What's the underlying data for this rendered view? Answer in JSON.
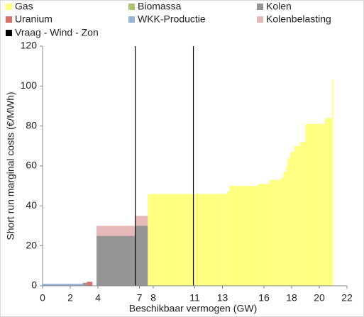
{
  "chart_data": {
    "type": "step-area",
    "x_label": "Beschikbaar vermogen (GW)",
    "y_label": "Short run marginal costs (€/MWh)",
    "xlim": [
      0,
      22
    ],
    "xticks": [
      0,
      2,
      4,
      7,
      8,
      11,
      13,
      16,
      18,
      20,
      22
    ],
    "ylim": [
      0,
      120
    ],
    "yticks": [
      0,
      20,
      40,
      60,
      80,
      100,
      120
    ],
    "grid": false,
    "series": [
      {
        "name": "Gas",
        "color": "#ffff80",
        "x0": [
          7.6,
          13.3,
          13.5,
          15.6,
          16.4,
          17.2,
          17.4,
          17.6,
          17.7,
          17.9,
          18.2,
          18.6,
          19.0,
          20.4,
          20.9
        ],
        "x1": [
          13.3,
          13.5,
          15.6,
          16.4,
          17.2,
          17.4,
          17.6,
          17.7,
          17.9,
          18.2,
          18.6,
          19.0,
          20.4,
          20.9,
          21.0
        ],
        "values": [
          46,
          47,
          50,
          51,
          53,
          54,
          57,
          60,
          64,
          67,
          70,
          72,
          81,
          84,
          103
        ]
      },
      {
        "name": "Biomassa",
        "color": "#a9c46c",
        "x0": [],
        "x1": [],
        "values": []
      },
      {
        "name": "Kolen",
        "color": "#969696",
        "x0": [
          2.9,
          3.9,
          6.7
        ],
        "x1": [
          3.2,
          6.7,
          7.6
        ],
        "values": [
          1.5,
          25,
          30
        ]
      },
      {
        "name": "Uranium",
        "color": "#d9706e",
        "x0": [
          3.2
        ],
        "x1": [
          3.6
        ],
        "values": [
          2
        ]
      },
      {
        "name": "WKK-Productie",
        "color": "#95b3d7",
        "x0": [
          0
        ],
        "x1": [
          2.9
        ],
        "values": [
          1
        ]
      },
      {
        "name": "Kolenbelasting",
        "color": "#e6b9b8",
        "stack_on": 2,
        "x0": [
          3.9,
          6.7
        ],
        "x1": [
          6.7,
          7.6
        ],
        "values": [
          5,
          5
        ]
      },
      {
        "name": "Vraag - Wind - Zon",
        "color": "#000000",
        "kind": "vline",
        "x": [
          6.7,
          10.9
        ]
      }
    ]
  }
}
